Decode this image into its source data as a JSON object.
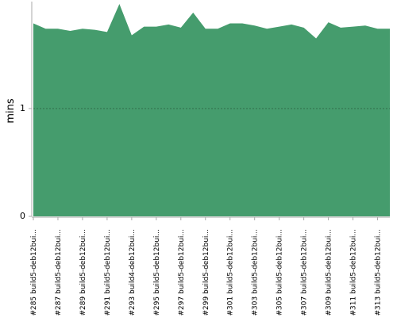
{
  "chart_data": {
    "type": "area",
    "y_label": "mins",
    "color": "#459c6d",
    "categories": [
      "#285 build5-deb12bui...",
      null,
      "#287 build5-deb12bui...",
      null,
      "#289 build5-deb12bui...",
      null,
      "#291 build5-deb12bui...",
      null,
      "#293 build4-deb12bui...",
      null,
      "#295 build5-deb12bui...",
      null,
      "#297 build5-deb12bui...",
      null,
      "#299 build5-deb12bui...",
      null,
      "#301 build5-deb12bui...",
      null,
      "#303 build5-deb12bui...",
      null,
      "#305 build5-deb12bui...",
      null,
      "#307 build5-deb12bui...",
      null,
      "#309 build5-deb12bui...",
      null,
      "#311 build5-deb12bui...",
      null,
      "#313 build5-deb12bui...",
      null
    ],
    "values": [
      1.79,
      1.74,
      1.74,
      1.72,
      1.74,
      1.73,
      1.71,
      1.97,
      1.68,
      1.76,
      1.76,
      1.78,
      1.75,
      1.89,
      1.74,
      1.74,
      1.79,
      1.79,
      1.77,
      1.74,
      1.76,
      1.78,
      1.75,
      1.65,
      1.8,
      1.75,
      1.76,
      1.77,
      1.74,
      1.74
    ],
    "ylim": [
      0,
      1.97
    ],
    "yticks": [
      0,
      1
    ],
    "grid": true
  }
}
